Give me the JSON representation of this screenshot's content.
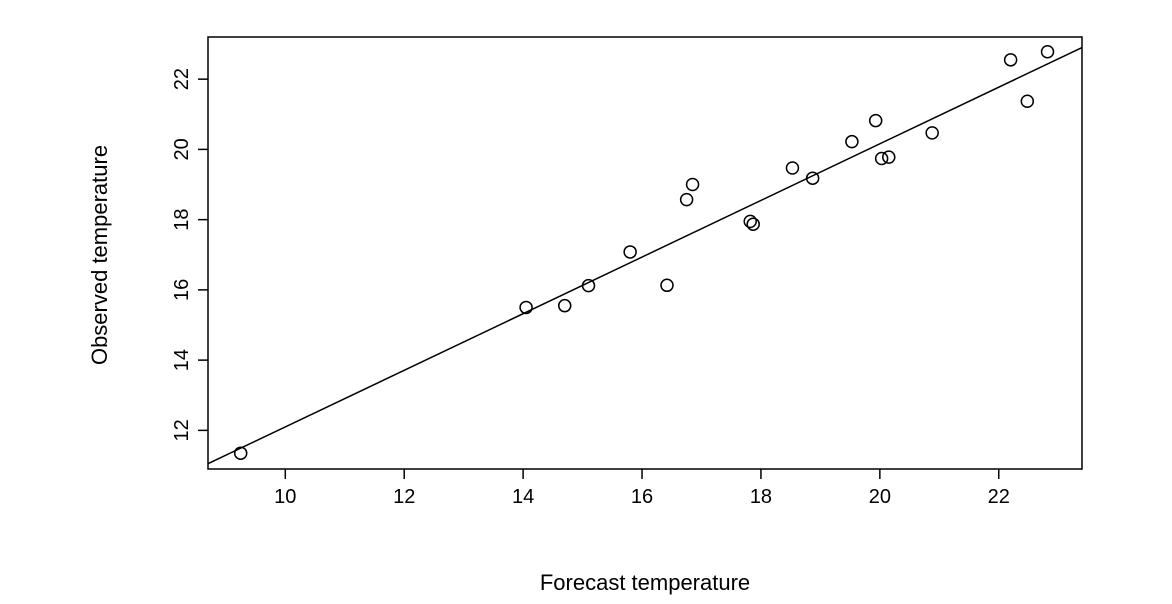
{
  "chart_data": {
    "type": "scatter",
    "title": "",
    "xlabel": "Forecast temperature",
    "ylabel": "Observed temperature",
    "xlim": [
      8.7,
      23.4
    ],
    "ylim": [
      10.9,
      23.2
    ],
    "x_ticks": [
      10,
      12,
      14,
      16,
      18,
      20,
      22
    ],
    "y_ticks": [
      12,
      14,
      16,
      18,
      20,
      22
    ],
    "grid": false,
    "legend": "none",
    "marker": "open-circle",
    "points": [
      {
        "x": 9.25,
        "y": 11.35
      },
      {
        "x": 14.05,
        "y": 15.5
      },
      {
        "x": 14.7,
        "y": 15.55
      },
      {
        "x": 15.1,
        "y": 16.12
      },
      {
        "x": 15.8,
        "y": 17.08
      },
      {
        "x": 16.42,
        "y": 16.13
      },
      {
        "x": 16.75,
        "y": 18.57
      },
      {
        "x": 16.85,
        "y": 19.0
      },
      {
        "x": 17.82,
        "y": 17.95
      },
      {
        "x": 17.87,
        "y": 17.87
      },
      {
        "x": 18.53,
        "y": 19.47
      },
      {
        "x": 18.87,
        "y": 19.18
      },
      {
        "x": 19.53,
        "y": 20.22
      },
      {
        "x": 19.93,
        "y": 20.82
      },
      {
        "x": 20.03,
        "y": 19.74
      },
      {
        "x": 20.15,
        "y": 19.78
      },
      {
        "x": 20.88,
        "y": 20.47
      },
      {
        "x": 22.2,
        "y": 22.55
      },
      {
        "x": 22.48,
        "y": 21.37
      },
      {
        "x": 22.82,
        "y": 22.78
      }
    ],
    "fit_line": {
      "x": [
        8.7,
        23.4
      ],
      "y": [
        11.05,
        22.9
      ]
    }
  }
}
